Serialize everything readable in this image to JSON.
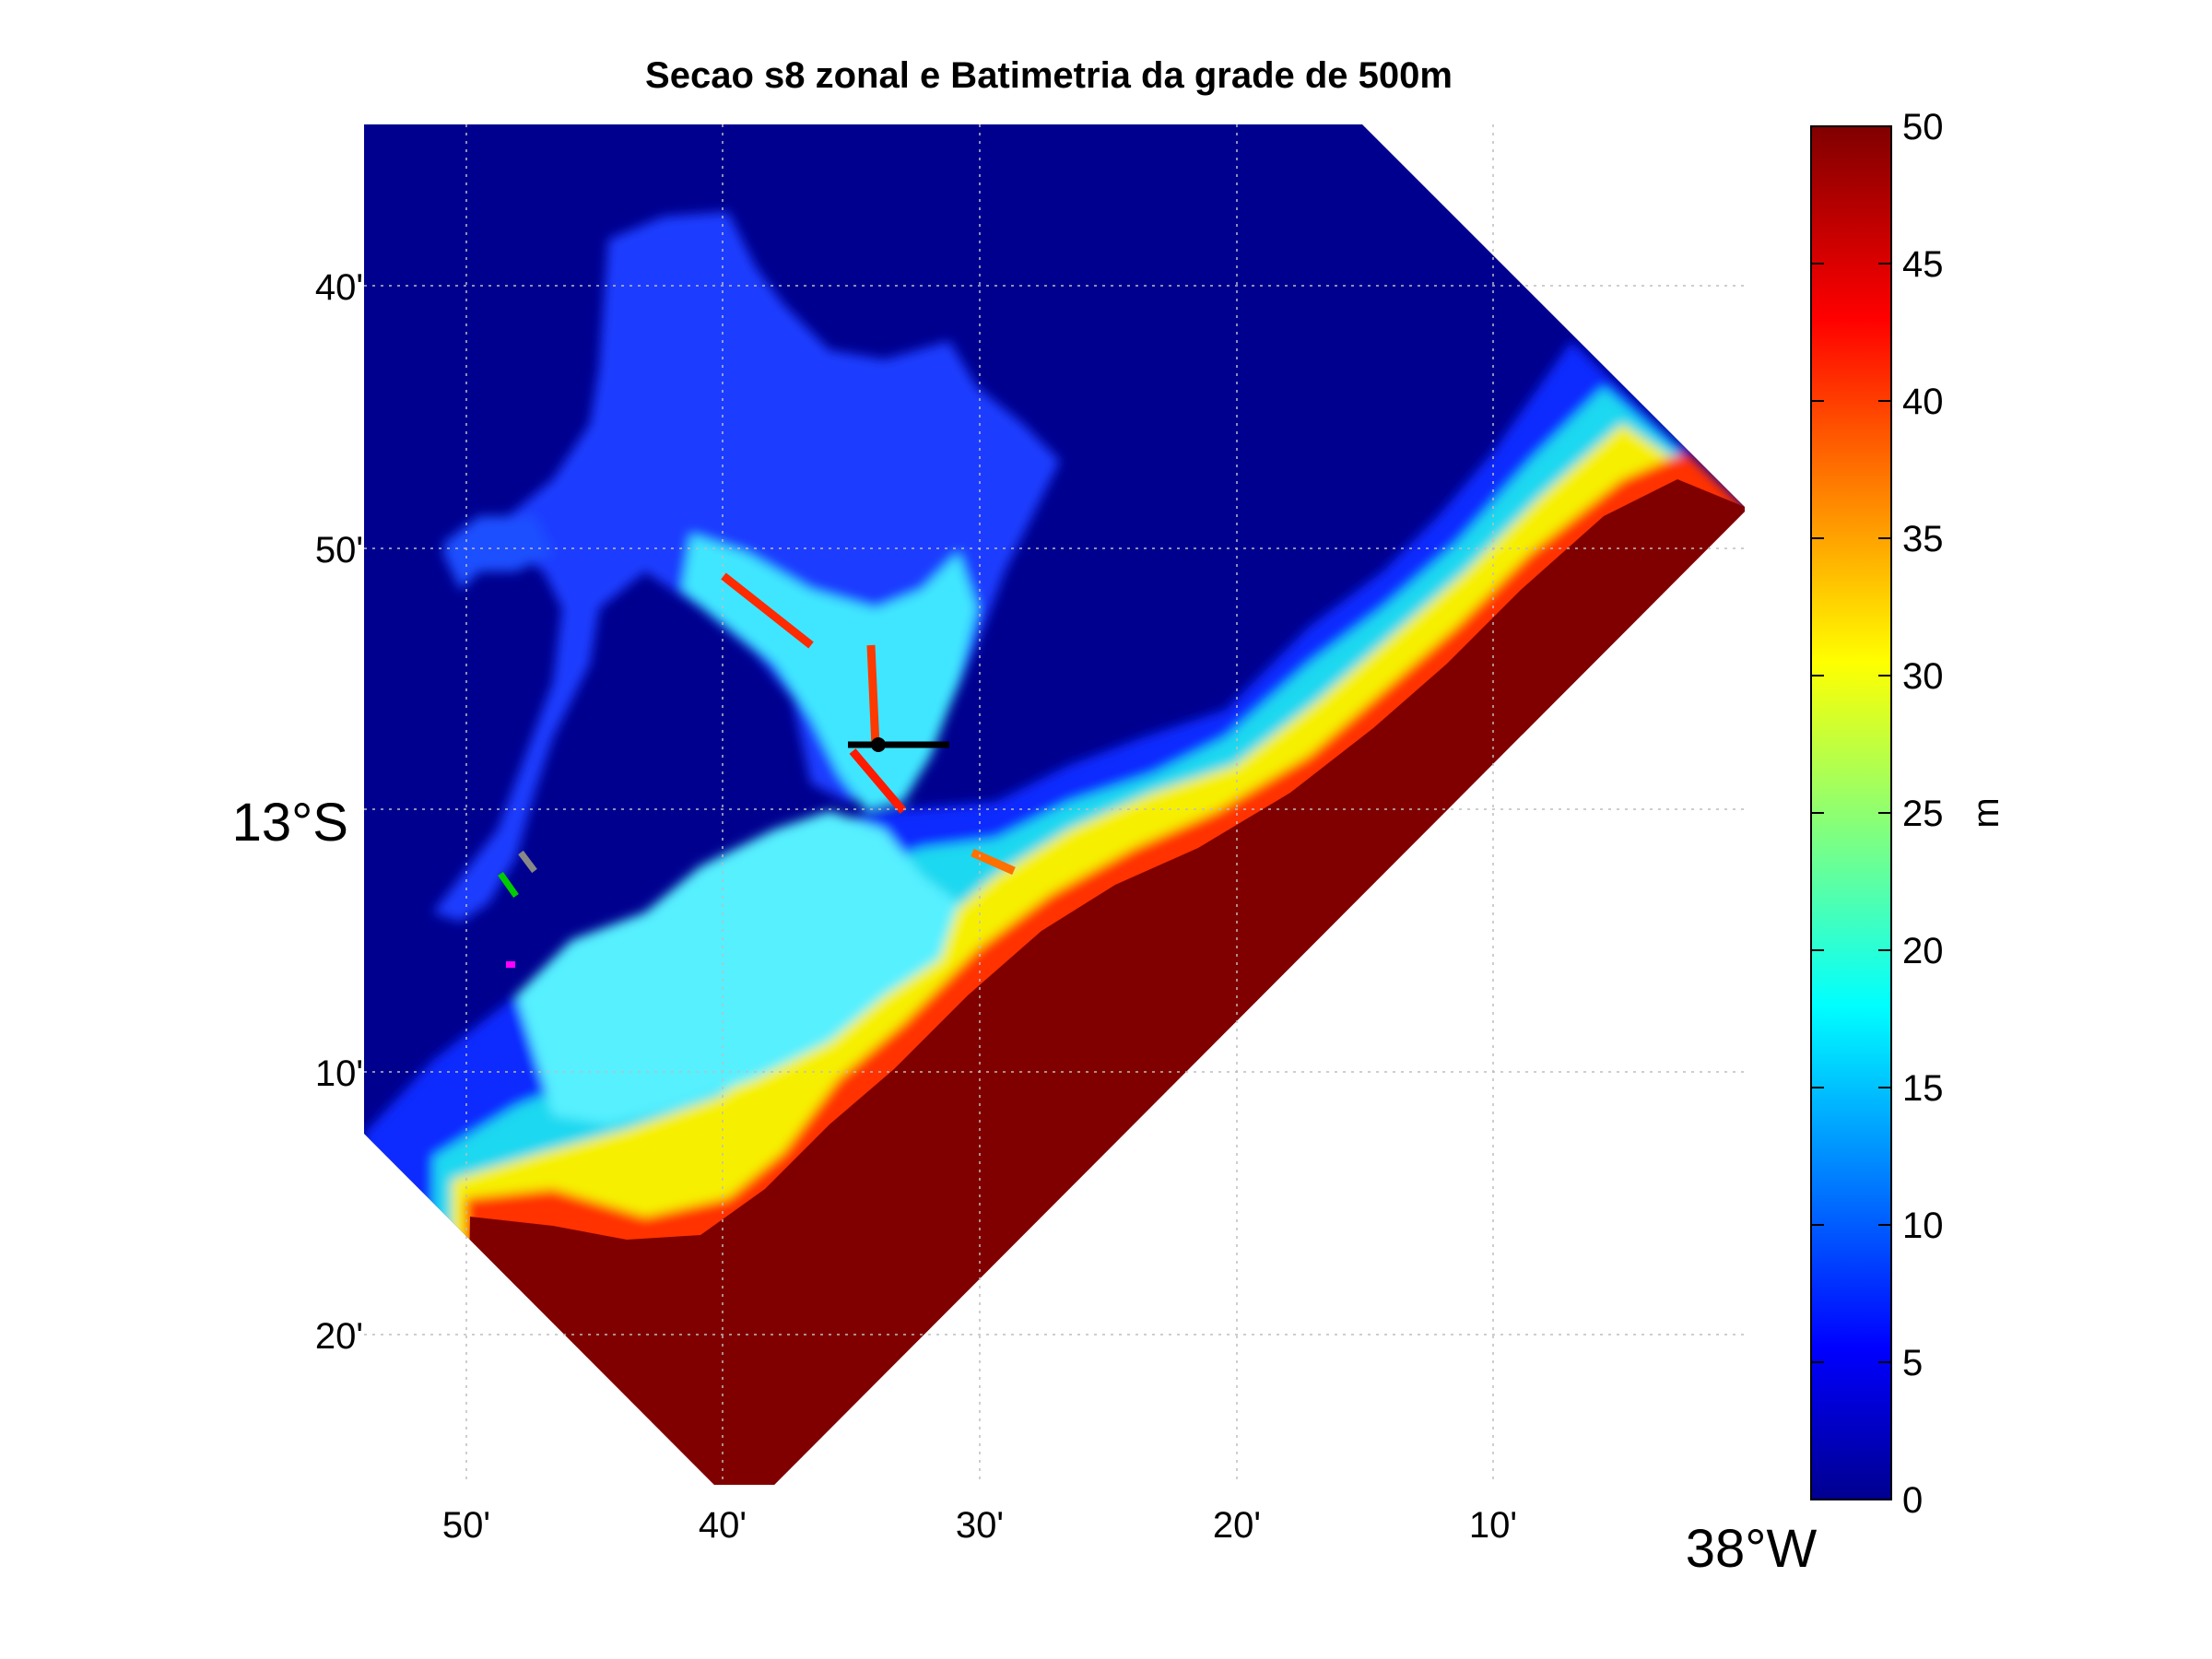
{
  "title": "Secao s8 zonal e Batimetria da grade de 500m",
  "map": {
    "lat_ticks": [
      "40'",
      "50'",
      "13°S",
      "10'",
      "20'"
    ],
    "lon_ticks": [
      "50'",
      "40'",
      "30'",
      "20'",
      "10'",
      "38°W"
    ],
    "lat_range_deg_S": [
      12.6,
      13.4
    ],
    "lon_range_deg_W": [
      38.0,
      38.9
    ],
    "grid": true,
    "section": {
      "name": "s8",
      "orientation": "zonal",
      "color": "#000000"
    }
  },
  "colorbar": {
    "label": "m",
    "min": 0,
    "max": 50,
    "ticks": [
      "0",
      "5",
      "10",
      "15",
      "20",
      "25",
      "30",
      "35",
      "40",
      "45",
      "50"
    ],
    "colormap": "jet"
  },
  "colors": {
    "land": "#00008f",
    "deep": "#800000",
    "shallow": "#0000ff",
    "mid": "#00ffff",
    "warm": "#ffff00",
    "hot": "#ff0000"
  }
}
